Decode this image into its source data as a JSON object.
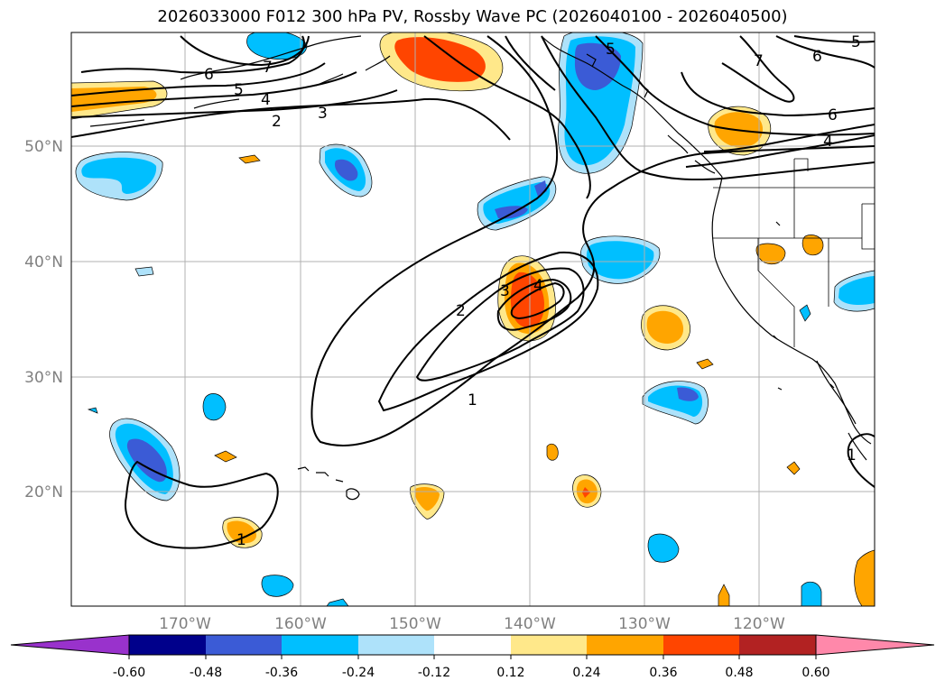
{
  "title": "2026033000 F012 300 hPa PV, Rossby Wave PC (2026040100 - 2026040500)",
  "lat_labels": [
    "50°N",
    "40°N",
    "30°N",
    "20°N"
  ],
  "lon_labels": [
    "170°W",
    "160°W",
    "150°W",
    "140°W",
    "130°W",
    "120°W"
  ],
  "map_extent": {
    "lon_range": [
      -180,
      -110
    ],
    "lat_range": [
      10,
      60
    ]
  },
  "colorbar": {
    "ticks": [
      "-0.60",
      "-0.48",
      "-0.36",
      "-0.24",
      "-0.12",
      "0.12",
      "0.24",
      "0.36",
      "0.48",
      "0.60"
    ],
    "colors": [
      "#9932cc",
      "#00008b",
      "#3b5bd6",
      "#00bfff",
      "#aee2fa",
      "#ffffff",
      "#ffe88a",
      "#ffa500",
      "#ff4500",
      "#b22222",
      "#ff88aa"
    ]
  },
  "contour_labels": {
    "north": [
      "7",
      "6",
      "5",
      "4",
      "2",
      "3"
    ],
    "central": [
      "2",
      "3",
      "4",
      "1"
    ],
    "southwest": [
      "1"
    ],
    "northeast": [
      "5",
      "7",
      "6",
      "6",
      "4",
      "5"
    ],
    "east": [
      "1"
    ]
  },
  "anomaly_colors": {
    "pos_light": "#ffe88a",
    "pos_mid": "#ffa500",
    "pos_strong": "#ff4500",
    "neg_light": "#aee2fa",
    "neg_mid": "#00bfff",
    "neg_strong": "#3b5bd6"
  }
}
